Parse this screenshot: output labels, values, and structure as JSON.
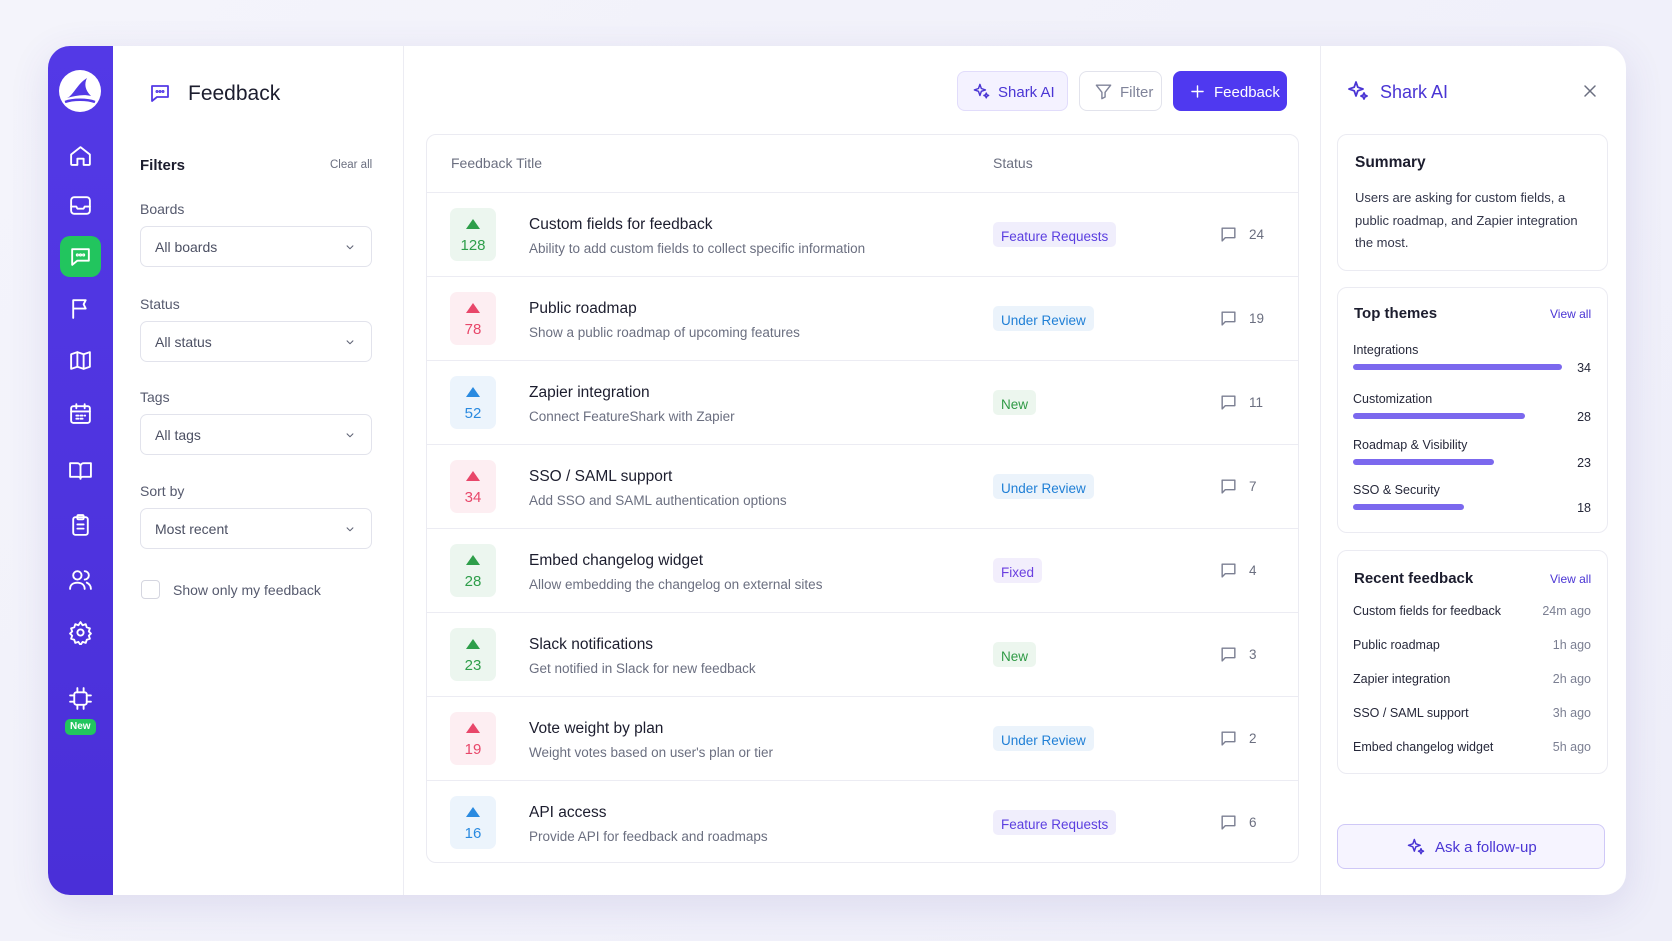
{
  "sidebar": {
    "badge": "New"
  },
  "filters_panel": {
    "title": "Feedback",
    "filters_label": "Filters",
    "clear_all": "Clear all",
    "fields": [
      {
        "label": "Boards",
        "value": "All boards"
      },
      {
        "label": "Status",
        "value": "All status"
      },
      {
        "label": "Tags",
        "value": "All tags"
      },
      {
        "label": "Sort by",
        "value": "Most recent"
      }
    ],
    "checkbox": "Show only my feedback"
  },
  "toolbar": {
    "shark_ai": "Shark AI",
    "filter": "Filter",
    "add": "Feedback"
  },
  "table": {
    "columns": [
      "Feedback Title",
      "Status"
    ],
    "rows": [
      {
        "votes": 128,
        "vote_color": "#2e9e4a",
        "title": "Custom fields for feedback",
        "description": "Ability to add custom fields to collect specific information",
        "status": "Feature Requests",
        "status_color": "#5b3fe0",
        "comments": 24
      },
      {
        "votes": 78,
        "vote_color": "#e8476a",
        "title": "Public roadmap",
        "description": "Show a public roadmap of upcoming features",
        "status": "Under Review",
        "status_color": "#1f7fd6",
        "comments": 19
      },
      {
        "votes": 52,
        "vote_color": "#2a8ae0",
        "title": "Zapier integration",
        "description": "Connect FeatureShark with Zapier",
        "status": "New",
        "status_color": "#2f9a45",
        "comments": 11
      },
      {
        "votes": 34,
        "vote_color": "#e8476a",
        "title": "SSO / SAML support",
        "description": "Add SSO and SAML authentication options",
        "status": "Under Review",
        "status_color": "#1f7fd6",
        "comments": 7
      },
      {
        "votes": 28,
        "vote_color": "#2e9e4a",
        "title": "Embed changelog widget",
        "description": "Allow embedding the changelog on external sites",
        "status": "Fixed",
        "status_color": "#6a3fe0",
        "comments": 4
      },
      {
        "votes": 23,
        "vote_color": "#2e9e4a",
        "title": "Slack notifications",
        "description": "Get notified in Slack for new feedback",
        "status": "New",
        "status_color": "#2f9a45",
        "comments": 3
      },
      {
        "votes": 19,
        "vote_color": "#e8476a",
        "title": "Vote weight by plan",
        "description": "Weight votes based on user's plan or tier",
        "status": "Under Review",
        "status_color": "#1f7fd6",
        "comments": 2
      },
      {
        "votes": 16,
        "vote_color": "#2a8ae0",
        "title": "API access",
        "description": "Provide API for feedback and roadmaps",
        "status": "Feature Requests",
        "status_color": "#5b3fe0",
        "comments": 6
      }
    ]
  },
  "ai_panel": {
    "title": "Shark AI",
    "summary": {
      "heading": "Summary",
      "text": "Users are asking for custom fields, a public roadmap, and Zapier integration the most."
    },
    "themes": {
      "heading": "Top themes",
      "view_all": "View all",
      "bar_color": "#7b68ee",
      "items": [
        {
          "name": "Integrations",
          "count": 34
        },
        {
          "name": "Customization",
          "count": 28
        },
        {
          "name": "Roadmap & Visibility",
          "count": 23
        },
        {
          "name": "SSO & Security",
          "count": 18
        }
      ]
    },
    "recent": {
      "heading": "Recent feedback",
      "view_all": "View all",
      "items": [
        {
          "title": "Custom fields for feedback",
          "time": "24m ago"
        },
        {
          "title": "Public roadmap",
          "time": "1h ago"
        },
        {
          "title": "Zapier integration",
          "time": "2h ago"
        },
        {
          "title": "SSO / SAML support",
          "time": "3h ago"
        },
        {
          "title": "Embed changelog widget",
          "time": "5h ago"
        }
      ]
    },
    "follow_up": "Ask a follow-up"
  }
}
